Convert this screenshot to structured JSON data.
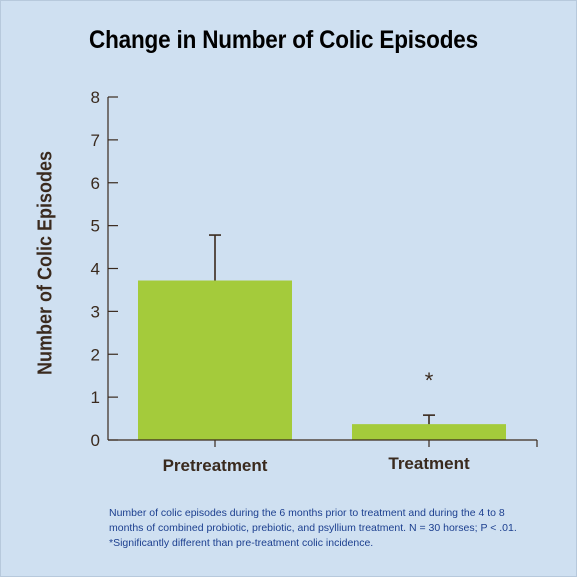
{
  "chart_data": {
    "type": "bar",
    "title": "Change in Number of Colic Episodes",
    "ylabel": "Number of Colic Episodes",
    "xlabel": "",
    "categories": [
      "Pretreatment",
      "Treatment"
    ],
    "values": [
      3.72,
      0.37
    ],
    "error_upper": [
      4.78,
      0.58
    ],
    "ylim": [
      0,
      8
    ],
    "yticks": [
      "0",
      "1",
      "2",
      "3",
      "4",
      "5",
      "6",
      "7",
      "8"
    ],
    "annotations": [
      {
        "category": "Treatment",
        "text": "*"
      }
    ],
    "bar_color": "#a4cb3b",
    "grid": false
  },
  "caption": "Number of colic episodes during the 6 months prior to treatment and during the 4 to 8 months of combined probiotic, prebiotic, and psyllium treatment. N = 30 horses; P < .01. *Significantly different than pre-treatment colic incidence."
}
